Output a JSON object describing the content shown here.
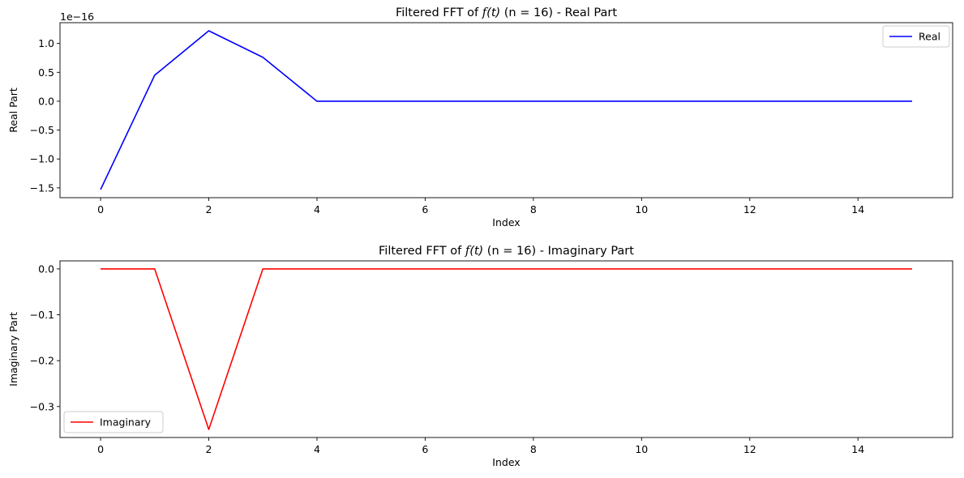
{
  "chart_data": [
    {
      "type": "line",
      "title_prefix": "Filtered FFT of ",
      "title_math_f": "f",
      "title_math_arg": "(t)",
      "title_suffix": " (n = 16) - Real Part",
      "xlabel": "Index",
      "ylabel": "Real Part",
      "offset_text": "1e−16",
      "x": [
        0,
        1,
        2,
        3,
        4,
        5,
        6,
        7,
        8,
        9,
        10,
        11,
        12,
        13,
        14,
        15
      ],
      "series": [
        {
          "name": "Real",
          "color": "#0000ff",
          "values": [
            -1.53,
            0.45,
            1.22,
            0.76,
            0,
            0,
            0,
            0,
            0,
            0,
            0,
            0,
            0,
            0,
            0,
            0
          ]
        }
      ],
      "xlim": [
        -0.75,
        15.75
      ],
      "ylim": [
        -1.67,
        1.36
      ],
      "xticks": [
        0,
        2,
        4,
        6,
        8,
        10,
        12,
        14
      ],
      "xtick_labels": [
        "0",
        "2",
        "4",
        "6",
        "8",
        "10",
        "12",
        "14"
      ],
      "yticks": [
        -1.5,
        -1.0,
        -0.5,
        0.0,
        0.5,
        1.0
      ],
      "ytick_labels": [
        "−1.5",
        "−1.0",
        "−0.5",
        "0.0",
        "0.5",
        "1.0"
      ],
      "legend_position": "upper right",
      "grid": false
    },
    {
      "type": "line",
      "title_prefix": "Filtered FFT of ",
      "title_math_f": "f",
      "title_math_arg": "(t)",
      "title_suffix": " (n = 16) - Imaginary Part",
      "xlabel": "Index",
      "ylabel": "Imaginary Part",
      "offset_text": "",
      "x": [
        0,
        1,
        2,
        3,
        4,
        5,
        6,
        7,
        8,
        9,
        10,
        11,
        12,
        13,
        14,
        15
      ],
      "series": [
        {
          "name": "Imaginary",
          "color": "#ff0000",
          "values": [
            0,
            0,
            -0.35,
            0,
            0,
            0,
            0,
            0,
            0,
            0,
            0,
            0,
            0,
            0,
            0,
            0
          ]
        }
      ],
      "xlim": [
        -0.75,
        15.75
      ],
      "ylim": [
        -0.3675,
        0.0175
      ],
      "xticks": [
        0,
        2,
        4,
        6,
        8,
        10,
        12,
        14
      ],
      "xtick_labels": [
        "0",
        "2",
        "4",
        "6",
        "8",
        "10",
        "12",
        "14"
      ],
      "yticks": [
        -0.3,
        -0.2,
        -0.1,
        0.0
      ],
      "ytick_labels": [
        "−0.3",
        "−0.2",
        "−0.1",
        "0.0"
      ],
      "legend_position": "lower left",
      "grid": false
    }
  ]
}
